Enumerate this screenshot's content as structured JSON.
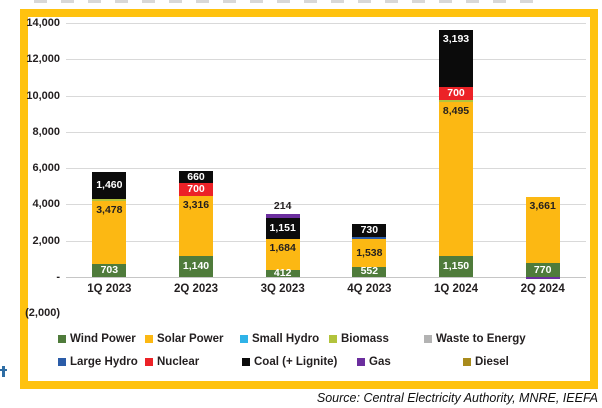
{
  "frame_color": "#FFC20E",
  "text_color": "#231F20",
  "source_note": "Source: Central Electricity Authority, MNRE, IEEFA",
  "chart_data": {
    "type": "bar",
    "variant": "stacked-column",
    "grid": true,
    "categories": [
      "1Q 2023",
      "2Q 2023",
      "3Q 2023",
      "4Q 2023",
      "1Q 2024",
      "2Q 2024"
    ],
    "y_axis": {
      "min": -2000,
      "max": 14000,
      "step": 2000,
      "ticks": [
        {
          "label": "14,000",
          "value": 14000
        },
        {
          "label": "12,000",
          "value": 12000
        },
        {
          "label": "10,000",
          "value": 10000
        },
        {
          "label": "8,000",
          "value": 8000
        },
        {
          "label": "6,000",
          "value": 6000
        },
        {
          "label": "4,000",
          "value": 4000
        },
        {
          "label": "2,000",
          "value": 2000
        },
        {
          "label": "-",
          "value": 0
        },
        {
          "label": "(2,000)",
          "value": -2000
        }
      ]
    },
    "legend": {
      "position": "bottom",
      "items": [
        {
          "name": "Wind Power",
          "color": "#4F7B3B",
          "row": 0,
          "col": 0
        },
        {
          "name": "Solar Power",
          "color": "#FCB813",
          "row": 0,
          "col": 1
        },
        {
          "name": "Small Hydro",
          "color": "#2FB3E8",
          "row": 0,
          "col": 2
        },
        {
          "name": "Biomass",
          "color": "#B2C33C",
          "row": 0,
          "col": 3
        },
        {
          "name": "Waste to Energy",
          "color": "#B3B3B3",
          "row": 0,
          "col": 4
        },
        {
          "name": "Large Hydro",
          "color": "#2B5CA8",
          "row": 1,
          "col": 0
        },
        {
          "name": "Nuclear",
          "color": "#EC2227",
          "row": 1,
          "col": 1
        },
        {
          "name": "Coal (+ Lignite)",
          "color": "#0B0B0B",
          "row": 1,
          "col": 2
        },
        {
          "name": "Gas",
          "color": "#6B2E9E",
          "row": 1,
          "col": 3
        },
        {
          "name": "Diesel",
          "color": "#A98B1C",
          "row": 1,
          "col": 4
        }
      ]
    },
    "bars": [
      {
        "category": "1Q 2023",
        "segments": [
          {
            "series": "Wind Power",
            "value": 703,
            "label": "703",
            "label_color": "#FFFFFF"
          },
          {
            "series": "Solar Power",
            "value": 3478,
            "label": "3,478",
            "label_color": "#231F20"
          },
          {
            "series": "Biomass",
            "value": 120,
            "label": "",
            "estimated": true
          },
          {
            "series": "Coal (+ Lignite)",
            "value": 1460,
            "label": "1,460",
            "label_color": "#FFFFFF"
          }
        ]
      },
      {
        "category": "2Q 2023",
        "segments": [
          {
            "series": "Wind Power",
            "value": 1140,
            "label": "1,140",
            "label_color": "#FFFFFF"
          },
          {
            "series": "Solar Power",
            "value": 3316,
            "label": "3,316",
            "label_color": "#231F20"
          },
          {
            "series": "Nuclear",
            "value": 700,
            "label": "700",
            "label_color": "#FFFFFF"
          },
          {
            "series": "Coal (+ Lignite)",
            "value": 660,
            "label": "660",
            "label_color": "#FFFFFF"
          }
        ]
      },
      {
        "category": "3Q 2023",
        "segments": [
          {
            "series": "Wind Power",
            "value": 412,
            "label": "412",
            "label_color": "#FFFFFF"
          },
          {
            "series": "Solar Power",
            "value": 1684,
            "label": "1,684",
            "label_color": "#231F20"
          },
          {
            "series": "Coal (+ Lignite)",
            "value": 1151,
            "label": "1,151",
            "label_color": "#FFFFFF"
          },
          {
            "series": "Gas",
            "value": 214,
            "label": "214",
            "label_color": "#231F20",
            "label_position": "above"
          }
        ]
      },
      {
        "category": "4Q 2023",
        "segments": [
          {
            "series": "Wind Power",
            "value": 552,
            "label": "552",
            "label_color": "#FFFFFF"
          },
          {
            "series": "Solar Power",
            "value": 1538,
            "label": "1,538",
            "label_color": "#231F20"
          },
          {
            "series": "Large Hydro",
            "value": 110,
            "label": "",
            "estimated": true
          },
          {
            "series": "Coal (+ Lignite)",
            "value": 730,
            "label": "730",
            "label_color": "#FFFFFF"
          }
        ]
      },
      {
        "category": "1Q 2024",
        "segments": [
          {
            "series": "Wind Power",
            "value": 1150,
            "label": "1,150",
            "label_color": "#FFFFFF"
          },
          {
            "series": "Solar Power",
            "value": 8495,
            "label": "8,495",
            "label_color": "#231F20"
          },
          {
            "series": "Biomass",
            "value": 100,
            "label": "",
            "estimated": true
          },
          {
            "series": "Nuclear",
            "value": 700,
            "label": "700",
            "label_color": "#FFFFFF"
          },
          {
            "series": "Coal (+ Lignite)",
            "value": 3193,
            "label": "3,193",
            "label_color": "#FFFFFF"
          }
        ]
      },
      {
        "category": "2Q 2024",
        "segments": [
          {
            "series": "Gas",
            "value": -120,
            "label": "",
            "estimated": true
          },
          {
            "series": "Wind Power",
            "value": 770,
            "label": "770",
            "label_color": "#FFFFFF"
          },
          {
            "series": "Solar Power",
            "value": 3661,
            "label": "3,661",
            "label_color": "#231F20"
          }
        ]
      }
    ]
  }
}
